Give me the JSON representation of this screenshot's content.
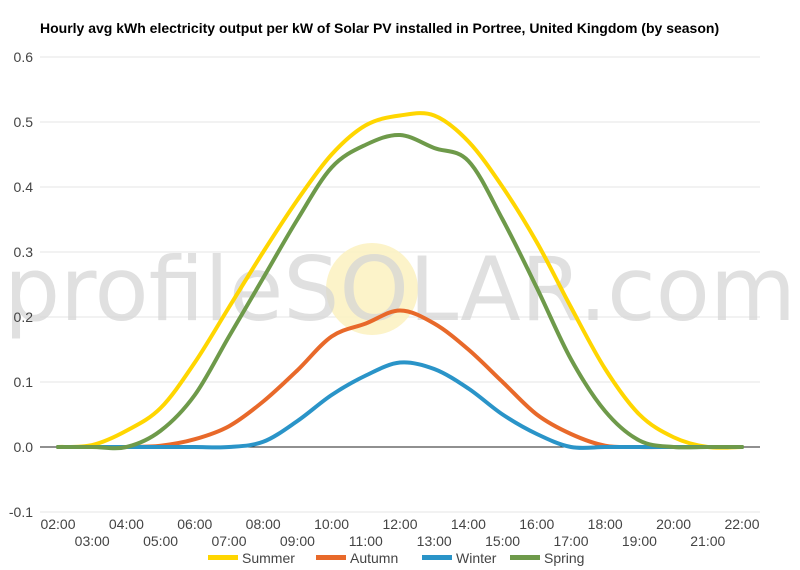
{
  "chart_data": {
    "type": "line",
    "title": "Hourly avg kWh electricity output per kW of Solar PV installed in Portree, United Kingdom (by season)",
    "watermark": "profileSOLAR.com",
    "ylim": [
      -0.1,
      0.6
    ],
    "yticks": [
      "-0.1",
      "0.0",
      "0.1",
      "0.2",
      "0.3",
      "0.4",
      "0.5",
      "0.6"
    ],
    "grid": true,
    "legend_position": "bottom",
    "categories": [
      "02:00",
      "03:00",
      "04:00",
      "05:00",
      "06:00",
      "07:00",
      "08:00",
      "09:00",
      "10:00",
      "11:00",
      "12:00",
      "13:00",
      "14:00",
      "15:00",
      "16:00",
      "17:00",
      "18:00",
      "19:00",
      "20:00",
      "21:00",
      "22:00"
    ],
    "series": [
      {
        "name": "Summer",
        "color": "#ffd600",
        "values": [
          0,
          0.003,
          0.025,
          0.06,
          0.13,
          0.215,
          0.3,
          0.38,
          0.45,
          0.495,
          0.51,
          0.51,
          0.47,
          0.4,
          0.315,
          0.215,
          0.12,
          0.05,
          0.015,
          0,
          0
        ]
      },
      {
        "name": "Autumn",
        "color": "#e8692a",
        "values": [
          0,
          0,
          0,
          0.002,
          0.012,
          0.032,
          0.07,
          0.118,
          0.17,
          0.19,
          0.21,
          0.19,
          0.15,
          0.1,
          0.05,
          0.02,
          0.002,
          0,
          0,
          0,
          0
        ]
      },
      {
        "name": "Winter",
        "color": "#2a94c8",
        "values": [
          0,
          0,
          0,
          0,
          0,
          0,
          0.008,
          0.04,
          0.08,
          0.11,
          0.13,
          0.12,
          0.09,
          0.05,
          0.02,
          0,
          0,
          0,
          0,
          0,
          0
        ]
      },
      {
        "name": "Spring",
        "color": "#6e9a4a",
        "values": [
          0,
          0,
          0,
          0.025,
          0.08,
          0.17,
          0.26,
          0.35,
          0.43,
          0.465,
          0.48,
          0.46,
          0.44,
          0.35,
          0.245,
          0.135,
          0.055,
          0.01,
          0,
          0,
          0
        ]
      }
    ]
  }
}
